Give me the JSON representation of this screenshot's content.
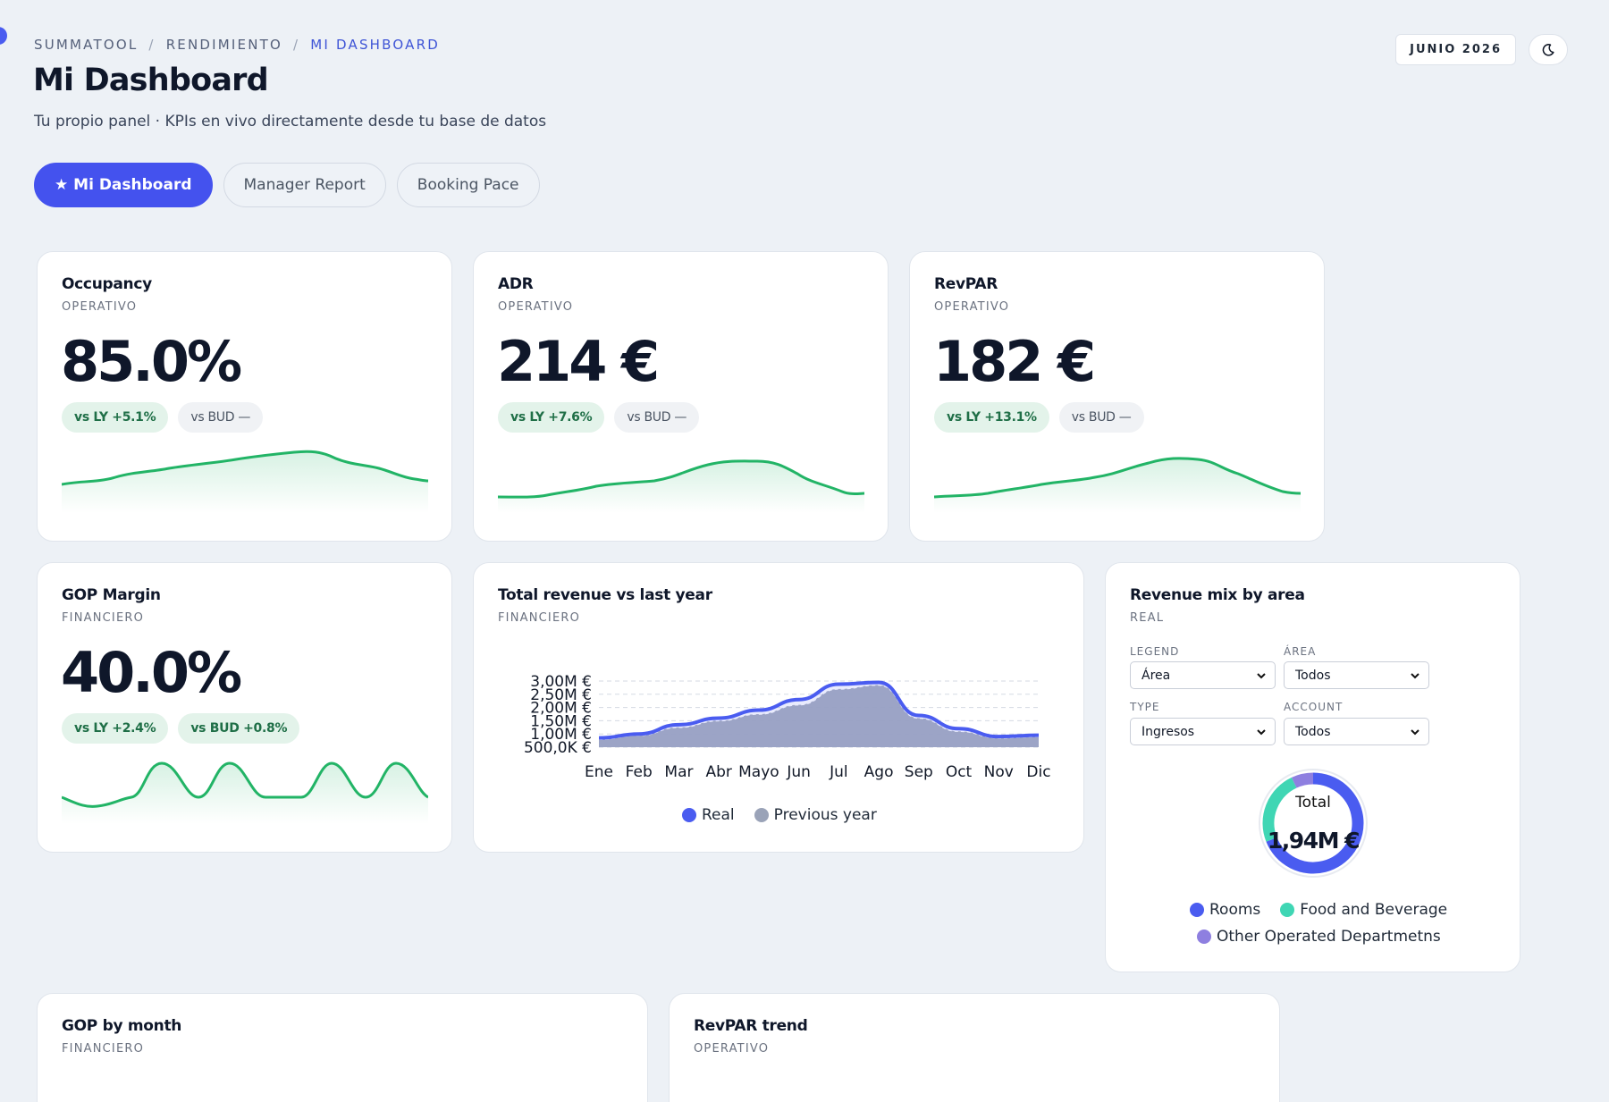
{
  "breadcrumb": {
    "root": "SUMMATOOL",
    "section": "RENDIMIENTO",
    "current": "MI DASHBOARD"
  },
  "header": {
    "title": "Mi Dashboard",
    "subtitle": "Tu propio panel · KPIs en vivo directamente desde tu base de datos",
    "date_label": "JUNIO 2026",
    "theme_icon": "moon-icon"
  },
  "tabs": [
    {
      "label": "★ Mi Dashboard",
      "active": true
    },
    {
      "label": "Manager Report",
      "active": false
    },
    {
      "label": "Booking Pace",
      "active": false
    }
  ],
  "colors": {
    "accent": "#4452ee",
    "positive": "#22b466",
    "real": "#4452ee",
    "previous_year": "#9aa3b8",
    "rooms": "#4a5cf0",
    "fnb": "#3fd6b4",
    "other": "#8e7fe0"
  },
  "kpis": {
    "occupancy": {
      "title": "Occupancy",
      "category": "OPERATIVO",
      "value": "85.0%",
      "vs_ly": "vs LY +5.1%",
      "vs_bud": "vs BUD —"
    },
    "adr": {
      "title": "ADR",
      "category": "OPERATIVO",
      "value": "214 €",
      "vs_ly": "vs LY +7.6%",
      "vs_bud": "vs BUD —"
    },
    "revpar": {
      "title": "RevPAR",
      "category": "OPERATIVO",
      "value": "182 €",
      "vs_ly": "vs LY +13.1%",
      "vs_bud": "vs BUD —"
    },
    "gop_margin": {
      "title": "GOP Margin",
      "category": "FINANCIERO",
      "value": "40.0%",
      "vs_ly": "vs LY +2.4%",
      "vs_bud": "vs BUD +0.8%"
    }
  },
  "revenue_card": {
    "title": "Total revenue vs last year",
    "category": "FINANCIERO"
  },
  "mix_card": {
    "title": "Revenue mix by area",
    "category": "REAL",
    "filters": {
      "legend_label": "LEGEND",
      "legend_value": "Área",
      "area_label": "ÁREA",
      "area_value": "Todos",
      "type_label": "TYPE",
      "type_value": "Ingresos",
      "account_label": "ACCOUNT",
      "account_value": "Todos"
    },
    "center_label": "Total",
    "center_value": "1,94M €"
  },
  "bottom_cards": {
    "gop_by_month": {
      "title": "GOP by month",
      "category": "FINANCIERO"
    },
    "revpar_trend": {
      "title": "RevPAR trend",
      "category": "OPERATIVO"
    }
  },
  "chart_data": [
    {
      "type": "area",
      "categories": [
        "Ene",
        "Feb",
        "Mar",
        "Abr",
        "Mayo",
        "Jun",
        "Jul",
        "Ago",
        "Sep",
        "Oct",
        "Nov",
        "Dic"
      ],
      "y_tick_labels": [
        "3,00M €",
        "2,50M €",
        "2,00M €",
        "1,50M €",
        "1,00M €",
        "500,0K €"
      ],
      "ylim": [
        500000,
        3000000
      ],
      "grid": true,
      "legend_position": "bottom",
      "series": [
        {
          "name": "Real",
          "values": [
            850000,
            1000000,
            1350000,
            1600000,
            1900000,
            2300000,
            2880000,
            2950000,
            1700000,
            1200000,
            900000,
            950000
          ]
        },
        {
          "name": "Previous year",
          "values": [
            800000,
            950000,
            1250000,
            1500000,
            1750000,
            2100000,
            2700000,
            2850000,
            1600000,
            1100000,
            850000,
            900000
          ]
        }
      ]
    },
    {
      "type": "pie",
      "categories": [
        "Rooms",
        "Food and Beverage",
        "Other Operated Departmetns"
      ],
      "values": [
        69,
        24,
        7
      ],
      "legend_position": "bottom"
    }
  ]
}
